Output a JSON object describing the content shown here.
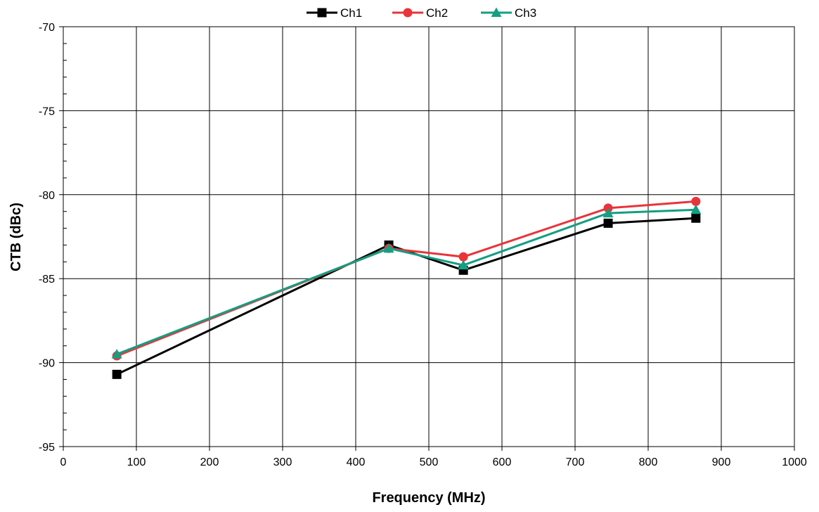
{
  "chart_data": {
    "type": "line",
    "title": "",
    "xlabel": "Frequency (MHz)",
    "ylabel": "CTB (dBc)",
    "xlim": [
      0,
      1000
    ],
    "ylim": [
      -95,
      -70
    ],
    "x_ticks": [
      0,
      100,
      200,
      300,
      400,
      500,
      600,
      700,
      800,
      900,
      1000
    ],
    "y_ticks": [
      -95,
      -90,
      -85,
      -80,
      -75,
      -70
    ],
    "x_tick_labels": [
      "0",
      "100",
      "200",
      "300",
      "400",
      "500",
      "600",
      "700",
      "800",
      "900",
      "1000"
    ],
    "y_tick_labels": [
      "-95",
      "-90",
      "-85",
      "-80",
      "-75",
      "-70"
    ],
    "grid": true,
    "minor_y_ticks": true,
    "legend_position": "top-center",
    "x": [
      73.25,
      445.25,
      547.25,
      745.25,
      865.25
    ],
    "series": [
      {
        "name": "Ch1",
        "color": "#000000",
        "marker": "square",
        "values": [
          -90.7,
          -83.0,
          -84.5,
          -81.7,
          -81.4
        ]
      },
      {
        "name": "Ch2",
        "color": "#e8343a",
        "marker": "circle",
        "values": [
          -89.6,
          -83.2,
          -83.7,
          -80.8,
          -80.4
        ]
      },
      {
        "name": "Ch3",
        "color": "#149e82",
        "marker": "triangle",
        "values": [
          -89.5,
          -83.2,
          -84.2,
          -81.1,
          -80.9
        ]
      }
    ]
  }
}
